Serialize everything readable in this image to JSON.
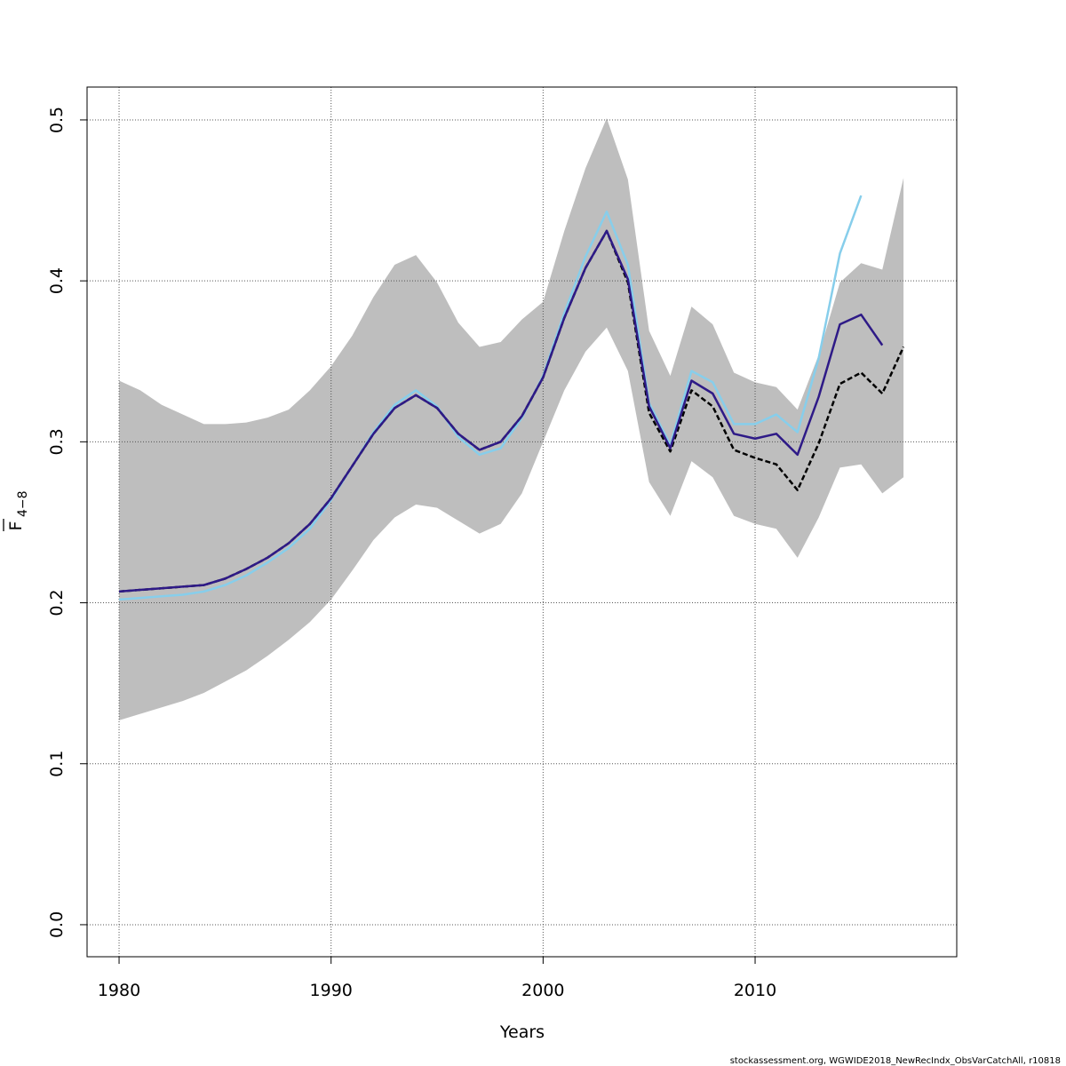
{
  "chart_data": {
    "type": "line",
    "xlabel": "Years",
    "ylabel": "F",
    "ylabel_subscript": "4−8",
    "footnote": "stockassessment.org, WGWIDE2018_NewRecIndx_ObsVarCatchAll, r10818",
    "x": [
      1980,
      1981,
      1982,
      1983,
      1984,
      1985,
      1986,
      1987,
      1988,
      1989,
      1990,
      1991,
      1992,
      1993,
      1994,
      1995,
      1996,
      1997,
      1998,
      1999,
      2000,
      2001,
      2002,
      2003,
      2004,
      2005,
      2006,
      2007,
      2008,
      2009,
      2010,
      2011,
      2012,
      2013,
      2014,
      2015,
      2016,
      2017
    ],
    "band": {
      "color": "#bebebe",
      "upper": [
        0.338,
        0.332,
        0.323,
        0.317,
        0.311,
        0.311,
        0.312,
        0.315,
        0.32,
        0.332,
        0.347,
        0.366,
        0.39,
        0.41,
        0.416,
        0.399,
        0.374,
        0.359,
        0.362,
        0.376,
        0.387,
        0.431,
        0.47,
        0.501,
        0.463,
        0.369,
        0.341,
        0.384,
        0.373,
        0.343,
        0.337,
        0.334,
        0.32,
        0.354,
        0.399,
        0.411,
        0.407,
        0.464
      ],
      "lower": [
        0.127,
        0.131,
        0.135,
        0.139,
        0.144,
        0.151,
        0.158,
        0.167,
        0.177,
        0.188,
        0.202,
        0.22,
        0.239,
        0.253,
        0.261,
        0.259,
        0.251,
        0.243,
        0.249,
        0.268,
        0.3,
        0.332,
        0.356,
        0.371,
        0.344,
        0.275,
        0.254,
        0.288,
        0.278,
        0.254,
        0.249,
        0.246,
        0.228,
        0.253,
        0.284,
        0.286,
        0.268,
        0.278
      ]
    },
    "series": [
      {
        "color": "#87ceeb",
        "dashed": false,
        "values": [
          0.202,
          0.203,
          0.204,
          0.205,
          0.207,
          0.211,
          0.217,
          0.225,
          0.234,
          0.246,
          0.264,
          0.285,
          0.306,
          0.323,
          0.332,
          0.322,
          0.303,
          0.292,
          0.296,
          0.315,
          0.341,
          0.38,
          0.415,
          0.443,
          0.41,
          0.324,
          0.298,
          0.344,
          0.337,
          0.311,
          0.311,
          0.317,
          0.306,
          0.352,
          0.417,
          0.453,
          null,
          null
        ]
      },
      {
        "color": "#000000",
        "dashed": true,
        "values": [
          0.207,
          0.208,
          0.209,
          0.21,
          0.211,
          0.215,
          0.221,
          0.228,
          0.237,
          0.249,
          0.265,
          0.285,
          0.305,
          0.321,
          0.329,
          0.321,
          0.305,
          0.295,
          0.3,
          0.316,
          0.34,
          0.377,
          0.408,
          0.431,
          0.399,
          0.318,
          0.294,
          0.332,
          0.322,
          0.295,
          0.29,
          0.286,
          0.27,
          0.299,
          0.336,
          0.343,
          0.33,
          0.359
        ]
      },
      {
        "color": "#2e1a87",
        "dashed": false,
        "values": [
          0.207,
          0.208,
          0.209,
          0.21,
          0.211,
          0.215,
          0.221,
          0.228,
          0.237,
          0.249,
          0.265,
          0.285,
          0.305,
          0.321,
          0.329,
          0.321,
          0.305,
          0.295,
          0.3,
          0.316,
          0.34,
          0.377,
          0.408,
          0.431,
          0.401,
          0.322,
          0.296,
          0.338,
          0.33,
          0.305,
          0.302,
          0.305,
          0.292,
          0.328,
          0.373,
          0.379,
          0.36,
          null
        ]
      }
    ],
    "xlim": [
      1978.49,
      2019.51
    ],
    "ylim": [
      -0.0199,
      0.5204
    ],
    "xticks": [
      1980,
      1990,
      2000,
      2010
    ],
    "yticks": [
      {
        "value": 0,
        "label": "0.0"
      },
      0.1,
      0.2,
      0.3,
      0.4,
      0.5
    ],
    "grid": true
  }
}
